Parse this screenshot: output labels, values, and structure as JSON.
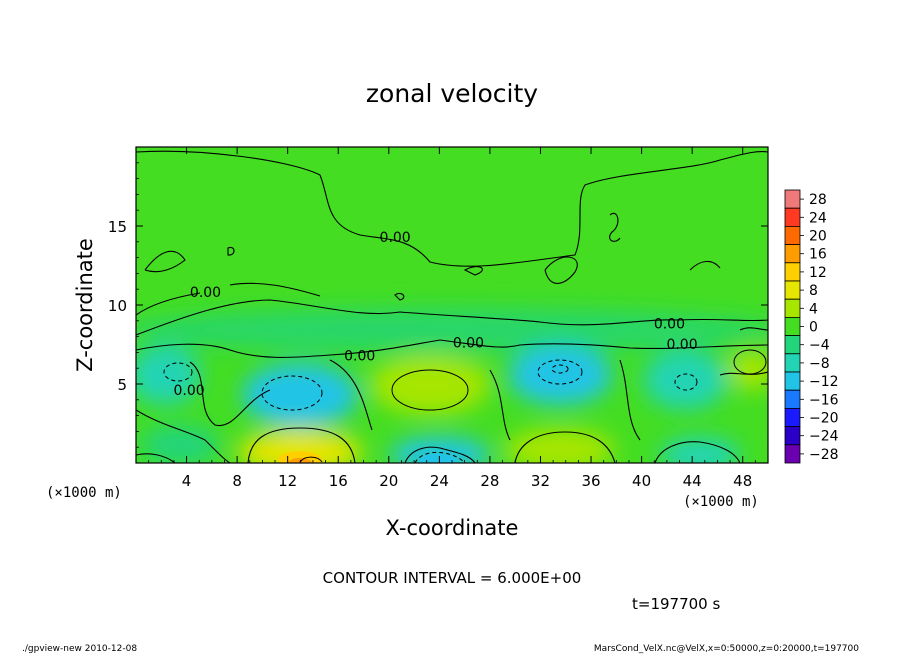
{
  "chart_data": {
    "type": "heatmap",
    "title": "zonal velocity",
    "xlabel": "X-coordinate",
    "ylabel": "Z-coordinate",
    "xunit_left": "(×1000 m)",
    "xunit_right": "(×1000 m)",
    "xlim": [
      0,
      50
    ],
    "ylim": [
      0,
      20
    ],
    "xticks": [
      4,
      8,
      12,
      16,
      20,
      24,
      28,
      32,
      36,
      40,
      44,
      48
    ],
    "yticks": [
      5,
      10,
      15
    ],
    "colorbar": {
      "levels": [
        28,
        24,
        20,
        16,
        12,
        8,
        4,
        0,
        -4,
        -8,
        -12,
        -16,
        -20,
        -24,
        -28
      ],
      "labels": [
        "28",
        "24",
        "20",
        "16",
        "12",
        "8",
        "4",
        "0",
        "−4",
        "−8",
        "−12",
        "−16",
        "−20",
        "−24",
        "−28"
      ],
      "colors": [
        "#f07a7a",
        "#ff3a22",
        "#ff6a00",
        "#ff9c00",
        "#ffd000",
        "#e6e600",
        "#a6e600",
        "#44dd22",
        "#22d47a",
        "#22d4b4",
        "#22c4e6",
        "#1a7aff",
        "#1a1aff",
        "#2a00c8",
        "#6a00b0"
      ]
    },
    "contour_labels": [
      {
        "text": "0.00",
        "x": 20.5,
        "z": 14
      },
      {
        "text": "0.00",
        "x": 5.5,
        "z": 10.5
      },
      {
        "text": "0.00",
        "x": 17.7,
        "z": 6.5
      },
      {
        "text": "0.00",
        "x": 26.3,
        "z": 7.3
      },
      {
        "text": "0.00",
        "x": 42.2,
        "z": 8.5
      },
      {
        "text": "0.00",
        "x": 43.2,
        "z": 7.2
      },
      {
        "text": "0.00",
        "x": 4.2,
        "z": 4.3
      }
    ],
    "contour_interval_text": "CONTOUR INTERVAL = 6.000E+00",
    "time_text": "t=197700 s"
  },
  "footer": {
    "left": "./gpview-new  2010-12-08",
    "right": "MarsCond_VelX.nc@VelX,x=0:50000,z=0:20000,t=197700"
  }
}
